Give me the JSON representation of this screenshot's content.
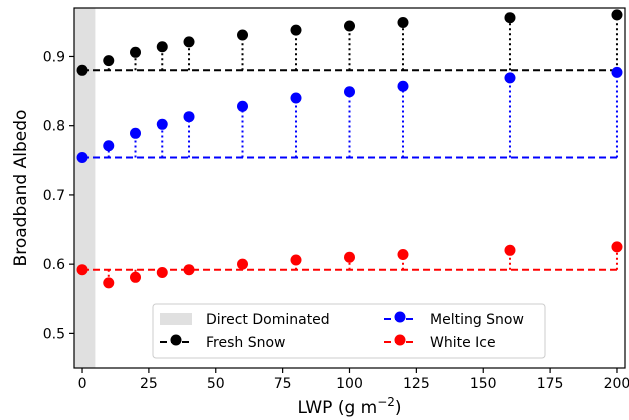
{
  "chart_data": {
    "type": "scatter",
    "xlabel": "LWP (g m",
    "xlabel_sup": "−2",
    "xlabel_close": ")",
    "ylabel": "Broadband Albedo",
    "xlim": [
      -3,
      203
    ],
    "ylim": [
      0.45,
      0.97
    ],
    "grid": false,
    "legend_placement": "bottom-center",
    "xticks": [
      0,
      25,
      50,
      75,
      100,
      125,
      150,
      175,
      200
    ],
    "xtick_labels": [
      "0",
      "25",
      "50",
      "75",
      "100",
      "125",
      "150",
      "175",
      "200"
    ],
    "yticks": [
      0.5,
      0.6,
      0.7,
      0.8,
      0.9
    ],
    "ytick_labels": [
      "0.5",
      "0.6",
      "0.7",
      "0.8",
      "0.9"
    ],
    "shaded_region": {
      "label": "Direct Dominated",
      "x_range": [
        -3,
        5
      ],
      "color": "#e0e0e0"
    },
    "x": [
      0,
      10,
      20,
      30,
      40,
      60,
      80,
      100,
      120,
      160,
      200
    ],
    "series": [
      {
        "name": "Fresh Snow",
        "color": "#000000",
        "baseline": 0.88,
        "values": [
          0.88,
          0.894,
          0.906,
          0.914,
          0.921,
          0.931,
          0.938,
          0.944,
          0.949,
          0.956,
          0.96
        ]
      },
      {
        "name": "Melting Snow",
        "color": "#0000ff",
        "baseline": 0.754,
        "values": [
          0.754,
          0.771,
          0.789,
          0.802,
          0.813,
          0.828,
          0.84,
          0.849,
          0.857,
          0.869,
          0.877
        ]
      },
      {
        "name": "White Ice",
        "color": "#ff0000",
        "baseline": 0.592,
        "values": [
          0.592,
          0.573,
          0.581,
          0.588,
          0.592,
          0.6,
          0.606,
          0.61,
          0.614,
          0.62,
          0.625
        ]
      }
    ],
    "legend": [
      {
        "label": "Direct Dominated",
        "kind": "patch",
        "color": "#e0e0e0"
      },
      {
        "label": "Fresh Snow",
        "kind": "series",
        "color": "#000000"
      },
      {
        "label": "Melting Snow",
        "kind": "series",
        "color": "#0000ff"
      },
      {
        "label": "White Ice",
        "kind": "series",
        "color": "#ff0000"
      }
    ]
  }
}
